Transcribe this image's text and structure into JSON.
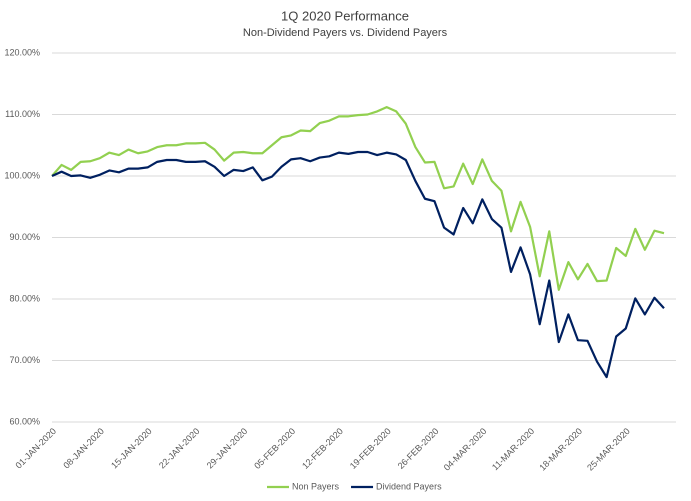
{
  "chart_data": {
    "type": "line",
    "title": "1Q 2020 Performance",
    "subtitle": "Non-Dividend Payers vs. Dividend Payers",
    "categories": [
      "01-JAN-2020",
      null,
      null,
      null,
      null,
      "08-JAN-2020",
      null,
      null,
      null,
      null,
      "15-JAN-2020",
      null,
      null,
      null,
      null,
      "22-JAN-2020",
      null,
      null,
      null,
      null,
      "29-JAN-2020",
      null,
      null,
      null,
      null,
      "05-FEB-2020",
      null,
      null,
      null,
      null,
      "12-FEB-2020",
      null,
      null,
      null,
      null,
      "19-FEB-2020",
      null,
      null,
      null,
      null,
      "26-FEB-2020",
      null,
      null,
      null,
      null,
      "04-MAR-2020",
      null,
      null,
      null,
      null,
      "11-MAR-2020",
      null,
      null,
      null,
      null,
      "18-MAR-2020",
      null,
      null,
      null,
      null,
      "25-MAR-2020",
      null,
      null,
      null,
      null
    ],
    "series": [
      {
        "name": "Non Payers",
        "color": "#92d050",
        "values": [
          100,
          101.8,
          101,
          102.3,
          102.4,
          102.9,
          103.8,
          103.4,
          104.3,
          103.7,
          104,
          104.7,
          105,
          105,
          105.3,
          105.3,
          105.4,
          104.3,
          102.5,
          103.8,
          103.9,
          103.7,
          103.7,
          105,
          106.3,
          106.6,
          107.4,
          107.3,
          108.6,
          109,
          109.7,
          109.7,
          109.9,
          110,
          110.5,
          111.2,
          110.5,
          108.5,
          104.7,
          102.2,
          102.3,
          98,
          98.3,
          102,
          98.7,
          102.7,
          99.2,
          97.6,
          91,
          95.8,
          91.7,
          83.7,
          91,
          81.5,
          86,
          83.2,
          85.7,
          82.9,
          83,
          88.3,
          87,
          91.4,
          88,
          91.1,
          90.7
        ]
      },
      {
        "name": "Dividend Payers",
        "color": "#002060",
        "values": [
          100,
          100.7,
          100,
          100.1,
          99.7,
          100.2,
          100.9,
          100.6,
          101.2,
          101.2,
          101.4,
          102.3,
          102.6,
          102.6,
          102.3,
          102.3,
          102.4,
          101.5,
          100,
          101,
          100.8,
          101.4,
          99.3,
          99.9,
          101.5,
          102.7,
          102.9,
          102.4,
          103,
          103.2,
          103.8,
          103.6,
          103.9,
          103.9,
          103.4,
          103.8,
          103.5,
          102.6,
          99.2,
          96.3,
          95.9,
          91.6,
          90.5,
          94.8,
          92.3,
          96.2,
          93,
          91.6,
          84.4,
          88.4,
          84,
          75.9,
          83,
          73,
          77.5,
          73.3,
          73.2,
          69.8,
          67.3,
          73.9,
          75.2,
          80.1,
          77.5,
          80.2,
          78.5
        ]
      }
    ],
    "ylim": [
      60,
      120
    ],
    "yticks": [
      {
        "value": 60,
        "label": "60.00%"
      },
      {
        "value": 70,
        "label": "70.00%"
      },
      {
        "value": 80,
        "label": "80.00%"
      },
      {
        "value": 90,
        "label": "90.00%"
      },
      {
        "value": 100,
        "label": "100.00%"
      },
      {
        "value": 110,
        "label": "110.00%"
      },
      {
        "value": 120,
        "label": "120.00%"
      }
    ],
    "grid": true,
    "legend": "bottom"
  }
}
